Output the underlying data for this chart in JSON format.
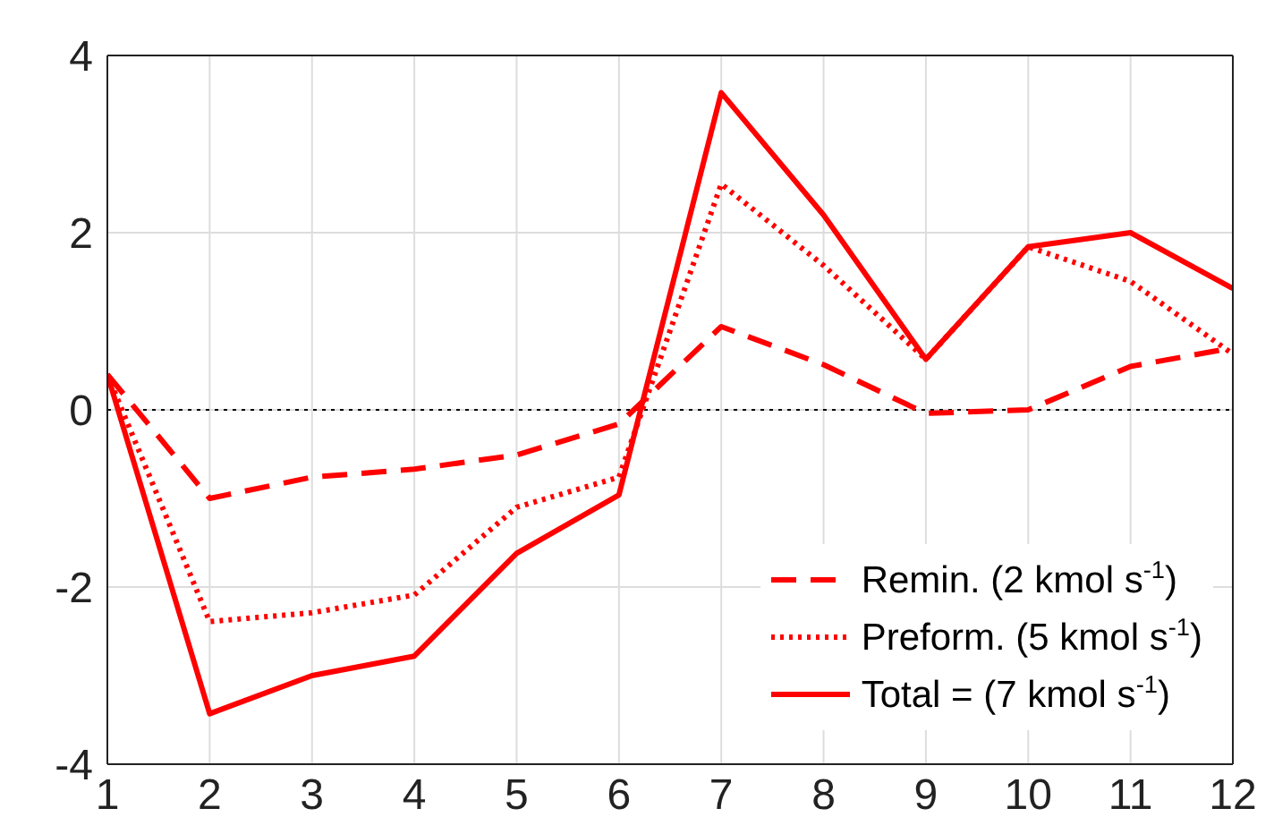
{
  "chart_data": {
    "type": "line",
    "x": [
      1,
      2,
      3,
      4,
      5,
      6,
      7,
      8,
      9,
      10,
      11,
      12
    ],
    "series": [
      {
        "name": "Remin. (2 kmol s$^{-1}$)",
        "color": "#ff0000",
        "line_style": "dashed",
        "values": [
          0.4,
          -1.0,
          -0.76,
          -0.67,
          -0.51,
          -0.16,
          0.94,
          0.51,
          -0.04,
          0,
          0.49,
          0.7
        ]
      },
      {
        "name": "Preform. (5 kmol s$^{-1}$)",
        "color": "#ff0000",
        "line_style": "dotted",
        "values": [
          0.4,
          -2.39,
          -2.29,
          -2.09,
          -1.1,
          -0.76,
          2.55,
          1.63,
          0.57,
          1.84,
          1.45,
          0.63
        ]
      },
      {
        "name": "Total = (7 kmol s$^{-1}$)",
        "color": "#ff0000",
        "line_style": "solid",
        "values": [
          0.4,
          -3.43,
          -3.0,
          -2.78,
          -1.62,
          -0.96,
          3.58,
          2.2,
          0.57,
          1.84,
          2.0,
          1.37
        ]
      }
    ],
    "xlim": [
      1,
      12
    ],
    "xticks": [
      1,
      2,
      3,
      4,
      5,
      6,
      7,
      8,
      9,
      10,
      11,
      12
    ],
    "ylim": [
      -4,
      4
    ],
    "yticks": [
      -4,
      -2,
      0,
      2,
      4
    ],
    "ref_lines": [
      {
        "axis": "y",
        "value": 0,
        "color": "#000000",
        "line_style": "dotted"
      }
    ],
    "grid": true,
    "legend": "bottom right",
    "marker": "none"
  }
}
